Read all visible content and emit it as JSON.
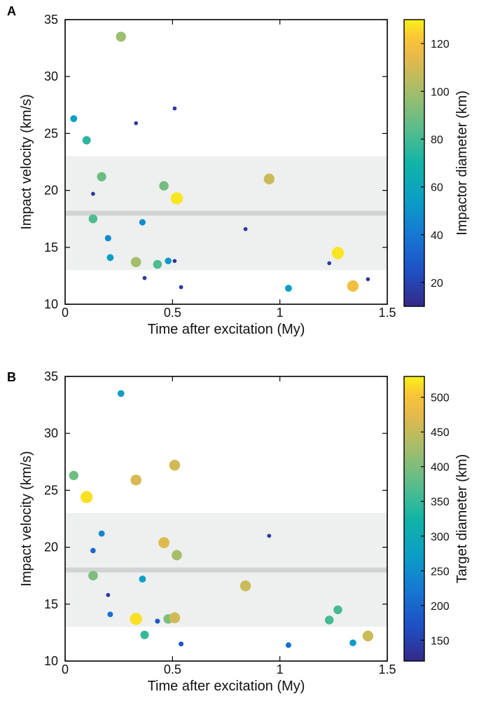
{
  "chart_data": [
    {
      "panel": "A",
      "type": "scatter",
      "xlabel": "Time after excitation (My)",
      "ylabel": "Impact velocity (km/s)",
      "xlim": [
        0,
        1.5
      ],
      "ylim": [
        10,
        35
      ],
      "xticks": [
        "0",
        "0.5",
        "1",
        "1.5"
      ],
      "yticks": [
        "10",
        "15",
        "20",
        "25",
        "30",
        "35"
      ],
      "band": {
        "from": 13,
        "to": 23,
        "color": "#eeefef"
      },
      "center_line": {
        "y": 18,
        "color": "#d2d3d4"
      },
      "colorbar": {
        "label": "Impactor diameter (km)",
        "min": 10,
        "max": 130,
        "ticks": [
          "20",
          "40",
          "60",
          "80",
          "100",
          "120"
        ],
        "tick_values": [
          20,
          40,
          60,
          80,
          100,
          120
        ]
      },
      "points": [
        {
          "x": 0.04,
          "y": 26.3,
          "c": 55
        },
        {
          "x": 0.1,
          "y": 24.4,
          "c": 75
        },
        {
          "x": 0.13,
          "y": 19.7,
          "c": 15
        },
        {
          "x": 0.13,
          "y": 17.5,
          "c": 82
        },
        {
          "x": 0.17,
          "y": 21.2,
          "c": 88
        },
        {
          "x": 0.2,
          "y": 15.8,
          "c": 48
        },
        {
          "x": 0.21,
          "y": 14.1,
          "c": 55
        },
        {
          "x": 0.26,
          "y": 33.5,
          "c": 98
        },
        {
          "x": 0.33,
          "y": 25.9,
          "c": 14
        },
        {
          "x": 0.33,
          "y": 13.7,
          "c": 100
        },
        {
          "x": 0.36,
          "y": 17.2,
          "c": 48
        },
        {
          "x": 0.37,
          "y": 12.3,
          "c": 16
        },
        {
          "x": 0.43,
          "y": 13.5,
          "c": 82
        },
        {
          "x": 0.46,
          "y": 20.4,
          "c": 90
        },
        {
          "x": 0.48,
          "y": 13.8,
          "c": 52
        },
        {
          "x": 0.51,
          "y": 13.8,
          "c": 14
        },
        {
          "x": 0.51,
          "y": 27.2,
          "c": 15
        },
        {
          "x": 0.52,
          "y": 19.3,
          "c": 128
        },
        {
          "x": 0.54,
          "y": 11.5,
          "c": 16
        },
        {
          "x": 0.84,
          "y": 16.6,
          "c": 15
        },
        {
          "x": 0.95,
          "y": 21.0,
          "c": 108
        },
        {
          "x": 1.04,
          "y": 11.4,
          "c": 56
        },
        {
          "x": 1.23,
          "y": 13.6,
          "c": 15
        },
        {
          "x": 1.27,
          "y": 14.5,
          "c": 128
        },
        {
          "x": 1.34,
          "y": 11.6,
          "c": 118
        },
        {
          "x": 1.41,
          "y": 12.2,
          "c": 14
        }
      ]
    },
    {
      "panel": "B",
      "type": "scatter",
      "xlabel": "Time after excitation (My)",
      "ylabel": "Impact velocity (km/s)",
      "xlim": [
        0,
        1.5
      ],
      "ylim": [
        10,
        35
      ],
      "xticks": [
        "0",
        "0.5",
        "1",
        "1.5"
      ],
      "yticks": [
        "10",
        "15",
        "20",
        "25",
        "30",
        "35"
      ],
      "band": {
        "from": 13,
        "to": 23,
        "color": "#eeefef"
      },
      "center_line": {
        "y": 18,
        "color": "#d2d3d4"
      },
      "colorbar": {
        "label": "Target diameter (km)",
        "min": 120,
        "max": 530,
        "ticks": [
          "150",
          "200",
          "250",
          "300",
          "350",
          "400",
          "450",
          "500"
        ],
        "tick_values": [
          150,
          200,
          250,
          300,
          350,
          400,
          450,
          500
        ]
      },
      "points": [
        {
          "x": 0.04,
          "y": 26.3,
          "c": 390
        },
        {
          "x": 0.1,
          "y": 24.4,
          "c": 520
        },
        {
          "x": 0.13,
          "y": 19.7,
          "c": 200
        },
        {
          "x": 0.13,
          "y": 17.5,
          "c": 400
        },
        {
          "x": 0.17,
          "y": 21.2,
          "c": 240
        },
        {
          "x": 0.2,
          "y": 15.8,
          "c": 140
        },
        {
          "x": 0.21,
          "y": 14.1,
          "c": 210
        },
        {
          "x": 0.26,
          "y": 33.5,
          "c": 270
        },
        {
          "x": 0.33,
          "y": 25.9,
          "c": 465
        },
        {
          "x": 0.33,
          "y": 13.7,
          "c": 520
        },
        {
          "x": 0.36,
          "y": 17.2,
          "c": 275
        },
        {
          "x": 0.37,
          "y": 12.3,
          "c": 350
        },
        {
          "x": 0.43,
          "y": 13.5,
          "c": 180
        },
        {
          "x": 0.46,
          "y": 20.4,
          "c": 470
        },
        {
          "x": 0.48,
          "y": 13.7,
          "c": 400
        },
        {
          "x": 0.51,
          "y": 13.8,
          "c": 460
        },
        {
          "x": 0.51,
          "y": 27.2,
          "c": 460
        },
        {
          "x": 0.52,
          "y": 19.3,
          "c": 430
        },
        {
          "x": 0.54,
          "y": 11.5,
          "c": 180
        },
        {
          "x": 0.84,
          "y": 16.6,
          "c": 455
        },
        {
          "x": 0.95,
          "y": 21.0,
          "c": 140
        },
        {
          "x": 1.04,
          "y": 11.4,
          "c": 210
        },
        {
          "x": 1.23,
          "y": 13.6,
          "c": 360
        },
        {
          "x": 1.27,
          "y": 14.5,
          "c": 360
        },
        {
          "x": 1.34,
          "y": 11.6,
          "c": 265
        },
        {
          "x": 1.41,
          "y": 12.2,
          "c": 455
        }
      ]
    }
  ]
}
